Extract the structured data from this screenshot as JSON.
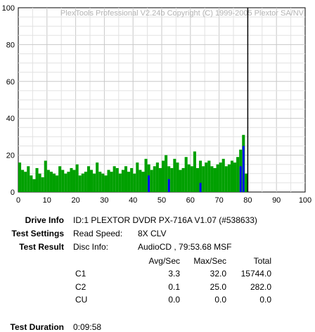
{
  "chart_data": {
    "type": "bar",
    "watermark": "PlexTools Professional V2.24b Copyright (C) 1999-2005 Plextor SA/NV",
    "xlim": [
      0,
      100
    ],
    "ylim": [
      0,
      100
    ],
    "x_ticks": [
      "0",
      "10",
      "20",
      "30",
      "40",
      "50",
      "60",
      "70",
      "80",
      "90",
      "100"
    ],
    "y_ticks": [
      "0",
      "20",
      "40",
      "60",
      "80",
      "100"
    ],
    "grid": true,
    "disc_end_marker_x": 80,
    "series": [
      {
        "name": "C1",
        "color": "#00a000",
        "x": [
          0.5,
          1.5,
          2.5,
          3.5,
          4.5,
          5.5,
          6.5,
          7.5,
          8.5,
          9.5,
          10.5,
          11.5,
          12.5,
          13.5,
          14.5,
          15.5,
          16.5,
          17.5,
          18.5,
          19.5,
          20.5,
          21.5,
          22.5,
          23.5,
          24.5,
          25.5,
          26.5,
          27.5,
          28.5,
          29.5,
          30.5,
          31.5,
          32.5,
          33.5,
          34.5,
          35.5,
          36.5,
          37.5,
          38.5,
          39.5,
          40.5,
          41.5,
          42.5,
          43.5,
          44.5,
          45.5,
          46.5,
          47.5,
          48.5,
          49.5,
          50.5,
          51.5,
          52.5,
          53.5,
          54.5,
          55.5,
          56.5,
          57.5,
          58.5,
          59.5,
          60.5,
          61.5,
          62.5,
          63.5,
          64.5,
          65.5,
          66.5,
          67.5,
          68.5,
          69.5,
          70.5,
          71.5,
          72.5,
          73.5,
          74.5,
          75.5,
          76.5,
          77.5,
          78.5,
          79.5
        ],
        "values": [
          16,
          12,
          11,
          14,
          9,
          7,
          13,
          10,
          8,
          17,
          12,
          11,
          10,
          9,
          14,
          12,
          10,
          11,
          13,
          12,
          15,
          9,
          10,
          11,
          14,
          12,
          10,
          16,
          11,
          10,
          9,
          12,
          11,
          14,
          13,
          10,
          12,
          14,
          11,
          13,
          10,
          16,
          12,
          11,
          18,
          15,
          12,
          14,
          16,
          13,
          17,
          20,
          14,
          13,
          18,
          16,
          12,
          13,
          19,
          15,
          14,
          22,
          13,
          17,
          14,
          16,
          17,
          14,
          13,
          15,
          16,
          18,
          14,
          15,
          17,
          16,
          19,
          23,
          31,
          10
        ]
      },
      {
        "name": "C2",
        "color": "#0000ff",
        "x": [
          45.5,
          52.5,
          63.5,
          77.5,
          78.5
        ],
        "values": [
          9,
          7,
          5,
          14,
          25
        ]
      }
    ]
  },
  "info": {
    "drive_info_label": "Drive Info",
    "drive_info_value": "ID:1 PLEXTOR DVDR PX-716A V1.07 (#538633)",
    "test_settings_label": "Test Settings",
    "read_speed_label": "Read Speed:",
    "read_speed_value": "8X CLV",
    "test_result_label": "Test Result",
    "disc_info_label": "Disc Info:",
    "disc_info_value": "AudioCD , 79:53.68 MSF",
    "table": {
      "headers": [
        "Avg/Sec",
        "Max/Sec",
        "Total"
      ],
      "rows": [
        {
          "label": "C1",
          "avg": "3.3",
          "max": "32.0",
          "total": "15744.0"
        },
        {
          "label": "C2",
          "avg": "0.1",
          "max": "25.0",
          "total": "282.0"
        },
        {
          "label": "CU",
          "avg": "0.0",
          "max": "0.0",
          "total": "0.0"
        }
      ]
    },
    "test_duration_label": "Test Duration",
    "test_duration_value": "0:09:58"
  }
}
